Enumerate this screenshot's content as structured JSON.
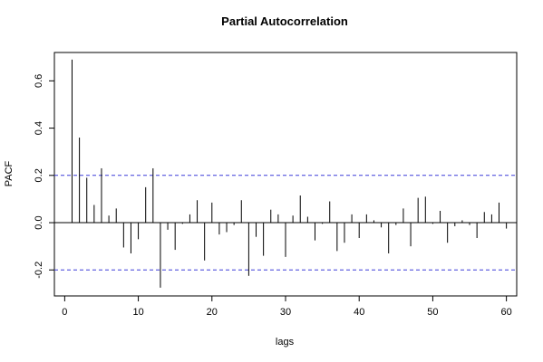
{
  "chart_data": {
    "type": "bar",
    "subtype": "pacf-spike",
    "title": "Partial Autocorrelation",
    "xlabel": "lags",
    "ylabel": "PACF",
    "xlim": [
      -1.4,
      61.4
    ],
    "ylim": [
      -0.31,
      0.72
    ],
    "xticks": [
      0,
      10,
      20,
      30,
      40,
      50,
      60
    ],
    "yticks": [
      -0.2,
      0.0,
      0.2,
      0.4,
      0.6
    ],
    "ytick_labels": [
      "-0.2",
      "0.0",
      "0.2",
      "0.4",
      "0.6"
    ],
    "xtick_labels": [
      "0",
      "10",
      "20",
      "30",
      "40",
      "50",
      "60"
    ],
    "confidence_band": [
      -0.2,
      0.2
    ],
    "confidence_color": "#3b3bd9",
    "grid": false,
    "lags": [
      1,
      2,
      3,
      4,
      5,
      6,
      7,
      8,
      9,
      10,
      11,
      12,
      13,
      14,
      15,
      16,
      17,
      18,
      19,
      20,
      21,
      22,
      23,
      24,
      25,
      26,
      27,
      28,
      29,
      30,
      31,
      32,
      33,
      34,
      35,
      36,
      37,
      38,
      39,
      40,
      41,
      42,
      43,
      44,
      45,
      46,
      47,
      48,
      49,
      50,
      51,
      52,
      53,
      54,
      55,
      56,
      57,
      58,
      59,
      60
    ],
    "values": [
      0.69,
      0.36,
      0.19,
      0.075,
      0.23,
      0.03,
      0.06,
      -0.105,
      -0.13,
      -0.07,
      0.15,
      0.23,
      -0.275,
      -0.03,
      -0.115,
      -0.005,
      0.035,
      0.095,
      -0.16,
      0.085,
      -0.05,
      -0.04,
      -0.01,
      0.095,
      -0.225,
      -0.06,
      -0.14,
      0.055,
      0.035,
      -0.145,
      0.03,
      0.115,
      0.025,
      -0.075,
      -0.005,
      0.09,
      -0.12,
      -0.085,
      0.035,
      -0.065,
      0.035,
      0.01,
      -0.02,
      -0.13,
      -0.01,
      0.06,
      -0.1,
      0.105,
      0.11,
      -0.005,
      0.05,
      -0.085,
      -0.015,
      0.01,
      -0.01,
      -0.065,
      0.045,
      0.035,
      0.085,
      -0.025
    ]
  }
}
